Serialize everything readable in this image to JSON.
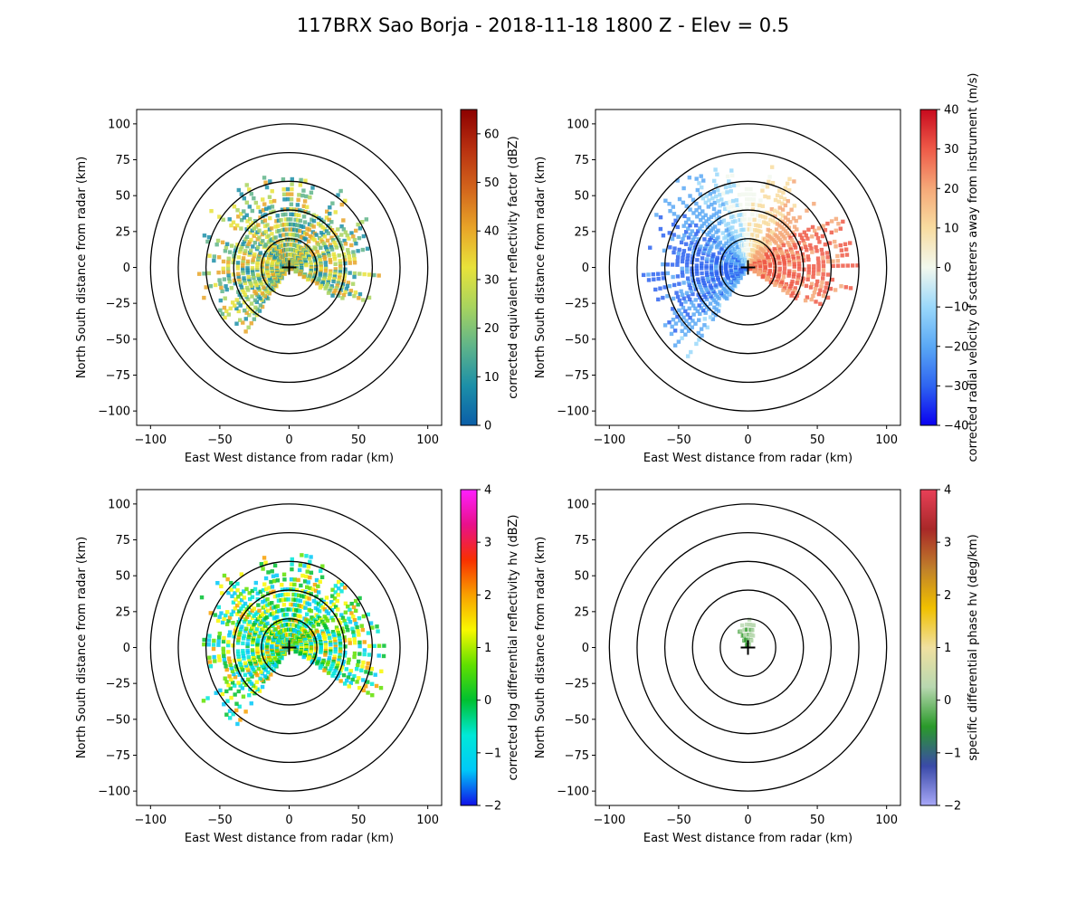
{
  "figure": {
    "title": "117BRX Sao Borja - 2018-11-18 1800 Z -  Elev = 0.5"
  },
  "chart_data": [
    {
      "type": "heatmap",
      "id": "reflectivity",
      "xlabel": "East West distance from radar (km)",
      "ylabel": "North South distance from radar (km)",
      "xlim": [
        -110,
        110
      ],
      "ylim": [
        -110,
        110
      ],
      "xticks": [
        "−100",
        "−50",
        "0",
        "50",
        "100"
      ],
      "yticks": [
        "100",
        "75",
        "50",
        "25",
        "0",
        "−25",
        "−50",
        "−75",
        "−100"
      ],
      "range_rings_km": [
        20,
        40,
        60,
        80,
        100
      ],
      "echo_extent": {
        "azimuth_from_deg": 215,
        "azimuth_to_deg": 125,
        "max_range_km": 70
      },
      "colorbar": {
        "label": "corrected equivalent reflectivity factor (dBZ)",
        "range": [
          0,
          65
        ],
        "ticks": [
          "0",
          "10",
          "20",
          "30",
          "40",
          "50",
          "60"
        ],
        "stops": [
          "#0b5ea8",
          "#1c8fa8",
          "#5fb48a",
          "#a8d45e",
          "#e8e23a",
          "#e8a428",
          "#d2641c",
          "#b83010",
          "#8c0000"
        ]
      }
    },
    {
      "type": "heatmap",
      "id": "velocity",
      "xlabel": "East West distance from radar (km)",
      "ylabel": "North South distance from radar (km)",
      "xlim": [
        -110,
        110
      ],
      "ylim": [
        -110,
        110
      ],
      "xticks": [
        "−100",
        "−50",
        "0",
        "50",
        "100"
      ],
      "yticks": [
        "100",
        "75",
        "50",
        "25",
        "0",
        "−25",
        "−50",
        "−75",
        "−100"
      ],
      "range_rings_km": [
        20,
        40,
        60,
        80,
        100
      ],
      "echo_extent": {
        "azimuth_from_deg": 215,
        "azimuth_to_deg": 125,
        "max_range_km": 80
      },
      "colorbar": {
        "label": "corrected radial velocity of scatterers away from instrument (m/s)",
        "range": [
          -40,
          40
        ],
        "ticks": [
          "−40",
          "−30",
          "−20",
          "−10",
          "0",
          "10",
          "20",
          "30",
          "40"
        ],
        "stops": [
          "#0a00f0",
          "#2e64f0",
          "#5aa8f5",
          "#9ad8fa",
          "#f2f8ee",
          "#f8dca0",
          "#f5a878",
          "#ee5a48",
          "#c80a1e"
        ]
      }
    },
    {
      "type": "heatmap",
      "id": "zdr",
      "xlabel": "East West distance from radar (km)",
      "ylabel": "North South distance from radar (km)",
      "xlim": [
        -110,
        110
      ],
      "ylim": [
        -110,
        110
      ],
      "xticks": [
        "−100",
        "−50",
        "0",
        "50",
        "100"
      ],
      "yticks": [
        "100",
        "75",
        "50",
        "25",
        "0",
        "−25",
        "−50",
        "−75",
        "−100"
      ],
      "range_rings_km": [
        20,
        40,
        60,
        80,
        100
      ],
      "echo_extent": {
        "azimuth_from_deg": 215,
        "azimuth_to_deg": 125,
        "max_range_km": 75
      },
      "colorbar": {
        "label": "corrected log differential reflectivity hv (dBZ)",
        "range": [
          -2,
          4
        ],
        "ticks": [
          "−2",
          "−1",
          "0",
          "1",
          "2",
          "3",
          "4"
        ],
        "stops": [
          "#1010e8",
          "#00c8f8",
          "#00e8d8",
          "#00c030",
          "#60e000",
          "#f8f800",
          "#f8a000",
          "#f83000",
          "#e8108a",
          "#ff20ff"
        ]
      }
    },
    {
      "type": "heatmap",
      "id": "kdp",
      "xlabel": "East West distance from radar (km)",
      "ylabel": "North South distance from radar (km)",
      "xlim": [
        -110,
        110
      ],
      "ylim": [
        -110,
        110
      ],
      "xticks": [
        "−100",
        "−50",
        "0",
        "50",
        "100"
      ],
      "yticks": [
        "100",
        "75",
        "50",
        "25",
        "0",
        "−25",
        "−50",
        "−75",
        "−100"
      ],
      "range_rings_km": [
        20,
        40,
        60,
        80,
        100
      ],
      "echo_extent": {
        "azimuth_from_deg": 330,
        "azimuth_to_deg": 30,
        "max_range_km": 20
      },
      "colorbar": {
        "label": "specific differential phase hv (deg/km)",
        "range": [
          -2,
          4
        ],
        "ticks": [
          "−2",
          "−1",
          "0",
          "1",
          "2",
          "3",
          "4"
        ],
        "stops": [
          "#a8a8f8",
          "#3a4aa8",
          "#2a9a2a",
          "#b8d8b0",
          "#f0e0a0",
          "#f0c000",
          "#c0802a",
          "#a82828",
          "#e84058"
        ]
      }
    }
  ]
}
